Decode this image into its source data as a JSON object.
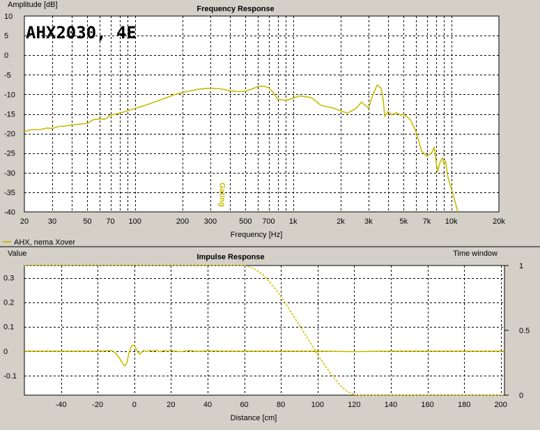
{
  "chart_data": [
    {
      "type": "line",
      "title": "Frequency Response",
      "ylabel": "Amplitude [dB]",
      "xlabel": "Frequency [Hz]",
      "x_scale": "log",
      "xlim": [
        20,
        20000
      ],
      "ylim": [
        -40,
        10
      ],
      "grid": true,
      "x_ticks": [
        20,
        30,
        50,
        70,
        100,
        200,
        300,
        500,
        700,
        1000,
        2000,
        3000,
        5000,
        7000,
        10000,
        20000
      ],
      "x_tick_labels": [
        "20",
        "30",
        "50",
        "70",
        "100",
        "200",
        "300",
        "500",
        "700",
        "1k",
        "2k",
        "3k",
        "5k",
        "7k",
        "10k",
        "20k"
      ],
      "y_ticks": [
        10,
        5,
        0,
        -5,
        -10,
        -15,
        -20,
        -25,
        -30,
        -35,
        -40
      ],
      "y_tick_labels": [
        "10",
        "5",
        "0",
        "-5",
        "-10",
        "-15",
        "-20",
        "-25",
        "-30",
        "-35",
        "-40"
      ],
      "annotation": "AHX2030, 4E",
      "gating_label": "Gating",
      "gating_frequency": 330,
      "legend": "AHX, nema Xover",
      "series": [
        {
          "name": "AHX, nema Xover",
          "color": "#c8bb00",
          "x": [
            20,
            22,
            25,
            28,
            30,
            33,
            36,
            40,
            45,
            50,
            55,
            60,
            65,
            70,
            80,
            90,
            100,
            120,
            150,
            180,
            200,
            250,
            300,
            350,
            400,
            450,
            500,
            550,
            600,
            650,
            700,
            750,
            800,
            900,
            1000,
            1100,
            1300,
            1500,
            1800,
            2000,
            2200,
            2500,
            2700,
            3000,
            3200,
            3400,
            3600,
            3700,
            3800,
            4000,
            4200,
            4500,
            4800,
            5000,
            5500,
            6000,
            6500,
            7000,
            7500,
            7800,
            8000,
            8200,
            8500,
            8800,
            9000,
            9200,
            9500,
            10000,
            10500,
            11000
          ],
          "values": [
            -19.5,
            -19.0,
            -19.0,
            -18.6,
            -18.7,
            -18.2,
            -18.1,
            -17.8,
            -17.6,
            -17.4,
            -16.4,
            -16.3,
            -16.3,
            -15.3,
            -14.8,
            -14.2,
            -13.6,
            -12.6,
            -11.2,
            -10.0,
            -9.5,
            -8.7,
            -8.4,
            -8.6,
            -9.1,
            -9.3,
            -9.2,
            -8.6,
            -8.0,
            -7.9,
            -8.3,
            -9.6,
            -11.3,
            -11.5,
            -11.0,
            -10.4,
            -10.8,
            -12.8,
            -13.5,
            -14.2,
            -14.8,
            -13.6,
            -12.0,
            -13.5,
            -10.0,
            -7.6,
            -8.4,
            -11.0,
            -15.6,
            -14.4,
            -15.2,
            -14.7,
            -15.3,
            -15.1,
            -16.4,
            -19.6,
            -24.5,
            -25.8,
            -25.0,
            -23.5,
            -27.0,
            -29.7,
            -27.3,
            -26.2,
            -28.0,
            -27.0,
            -31.0,
            -34.0,
            -37.0,
            -40.0
          ]
        }
      ]
    },
    {
      "type": "line",
      "title": "Impulse Response",
      "ylabel": "Value",
      "ylabel2": "Time window",
      "xlabel": "Distance [cm]",
      "xlim": [
        -60,
        202
      ],
      "ylim": [
        -0.18,
        0.35
      ],
      "y2lim": [
        0,
        1
      ],
      "grid": true,
      "x_ticks": [
        -40,
        -20,
        0,
        20,
        40,
        60,
        80,
        100,
        120,
        140,
        160,
        180,
        200
      ],
      "x_tick_labels": [
        "-40",
        "-20",
        "0",
        "20",
        "40",
        "60",
        "80",
        "100",
        "120",
        "140",
        "160",
        "180",
        "200"
      ],
      "y_ticks": [
        0.3,
        0.2,
        0.1,
        0,
        -0.1
      ],
      "y_tick_labels": [
        "0.3",
        "0.2",
        "0.1",
        "0",
        "-0.1"
      ],
      "y2_ticks": [
        1,
        0.5,
        0
      ],
      "y2_tick_labels": [
        "1",
        "0.5",
        "0"
      ],
      "series": [
        {
          "name": "AHX, nema Xover",
          "color": "#c8bb00",
          "x": [
            -60,
            -20,
            -12,
            -10,
            -8,
            -6,
            -5,
            -4,
            -3,
            -2,
            -1,
            0,
            1,
            2,
            3,
            4,
            5,
            6,
            7,
            8,
            10,
            12,
            14,
            16,
            18,
            20,
            25,
            30,
            35,
            40,
            50,
            60,
            80,
            100,
            120,
            140,
            160,
            180,
            202
          ],
          "values": [
            0.0,
            0.0,
            0.002,
            -0.01,
            -0.03,
            -0.055,
            -0.06,
            -0.045,
            -0.01,
            0.015,
            0.025,
            0.022,
            0.01,
            -0.005,
            -0.012,
            -0.004,
            0.003,
            0.0,
            -0.002,
            0.003,
            0.0,
            0.004,
            -0.003,
            0.003,
            0.0,
            0.002,
            -0.002,
            0.002,
            -0.001,
            0.001,
            0.0,
            0.0,
            0.0,
            0.0,
            -0.002,
            0.0,
            0.0,
            0.0,
            0.0
          ]
        },
        {
          "name": "Time window",
          "axis": "right",
          "color": "#d6c000",
          "x": [
            -60,
            60,
            62,
            66,
            70,
            74,
            78,
            82,
            86,
            90,
            94,
            98,
            100,
            104,
            108,
            112,
            116,
            120,
            122,
            202
          ],
          "values": [
            1.0,
            1.0,
            0.995,
            0.97,
            0.93,
            0.87,
            0.8,
            0.72,
            0.63,
            0.54,
            0.45,
            0.36,
            0.31,
            0.23,
            0.15,
            0.08,
            0.03,
            0.005,
            0.0,
            0.0
          ]
        }
      ]
    }
  ]
}
